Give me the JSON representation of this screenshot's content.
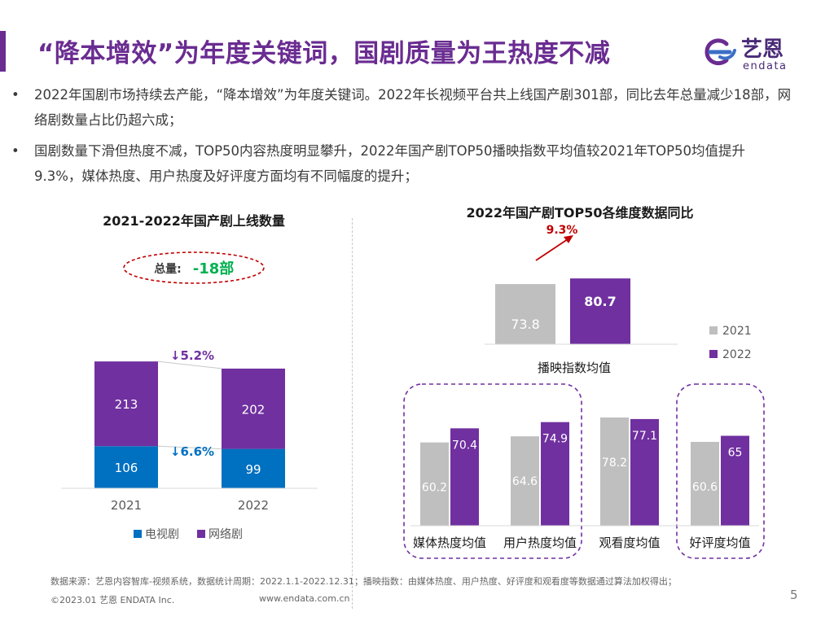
{
  "page": {
    "title": "“降本增效”为年度关键词，国剧质量为王热度不减",
    "logo_cn": "艺恩",
    "logo_en": "endata",
    "bullets": [
      "2022年国剧市场持续去产能，“降本增效”为年度关键词。2022年长视频平台共上线国产剧301部，同比去年总量减少18部，网络剧数量占比仍超六成；",
      "国剧数量下滑但热度不减，TOP50内容热度明显攀升，2022年国产剧TOP50播映指数平均值较2021年TOP50均值提升9.3%，媒体热度、用户热度及好评度方面均有不同幅度的提升；"
    ],
    "bullet_symbol": "•",
    "footer_source": "数据来源：艺恩内容智库-视频系统，数据统计周期：2022.1.1-2022.12.31；播映指数：由媒体热度、用户热度、好评度和观看度等数据通过算法加权得出；",
    "footer_copyright": "©2023.01 艺恩 ENDATA Inc.",
    "footer_url": "www.endata.com.cn",
    "page_number": "5"
  },
  "colors": {
    "purple": "#7030a0",
    "blue": "#0070c0",
    "gray": "#bfbfbf",
    "green": "#00b050",
    "red": "#c00000",
    "title_purple": "#6a2c91"
  },
  "chart_data": [
    {
      "type": "bar",
      "stacked": true,
      "title": "2021-2022年国产剧上线数量",
      "categories": [
        "2021",
        "2022"
      ],
      "series": [
        {
          "name": "电视剧",
          "values": [
            106,
            99
          ]
        },
        {
          "name": "网络剧",
          "values": [
            213,
            202
          ]
        }
      ],
      "total_label": "总量:",
      "total_change": "-18部",
      "change_labels": {
        "网络剧": "↓5.2%",
        "电视剧": "↓6.6%"
      },
      "legend": [
        "电视剧",
        "网络剧"
      ]
    },
    {
      "type": "bar",
      "title": "2022年国产剧TOP50各维度数据同比",
      "legend": [
        "2021",
        "2022"
      ],
      "main": {
        "category": "播映指数均值",
        "values": [
          73.8,
          80.7
        ],
        "growth": "9.3%"
      },
      "categories": [
        "媒体热度均值",
        "用户热度均值",
        "观看度均值",
        "好评度均值"
      ],
      "series": [
        {
          "name": "2021",
          "values": [
            60.2,
            64.6,
            78.2,
            60.6
          ]
        },
        {
          "name": "2022",
          "values": [
            70.4,
            74.9,
            77.1,
            65
          ]
        }
      ],
      "highlighted": [
        "媒体热度均值",
        "用户热度均值",
        "好评度均值"
      ]
    }
  ]
}
